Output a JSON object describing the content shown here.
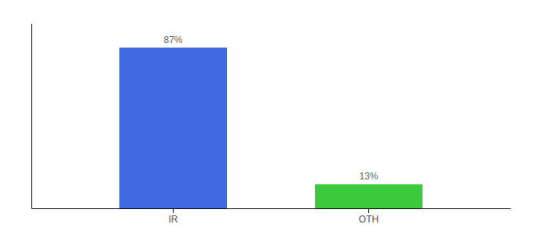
{
  "chart_data": {
    "type": "bar",
    "categories": [
      "IR",
      "OTH"
    ],
    "values": [
      87,
      13
    ],
    "value_labels": [
      "87%",
      "13%"
    ],
    "colors": [
      "#4169e1",
      "#3cc93c"
    ],
    "ylim": [
      0,
      100
    ],
    "data_labels": true,
    "tick_labels": "x"
  }
}
